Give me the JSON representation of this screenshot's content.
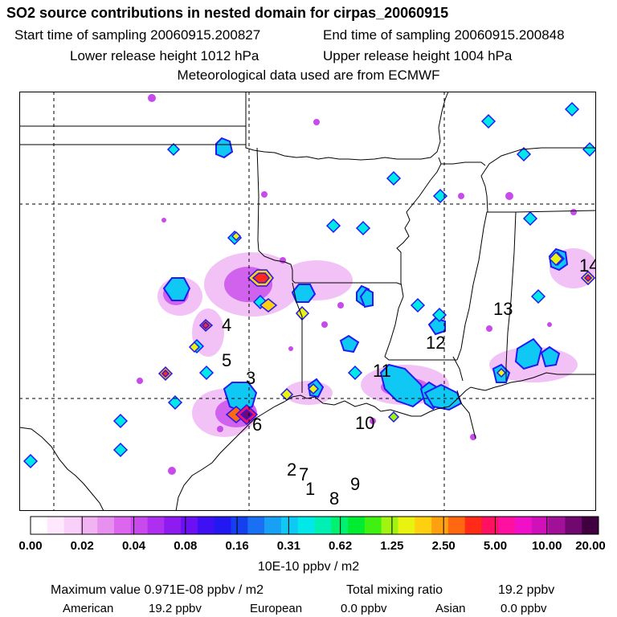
{
  "header": {
    "title": "SO2 source contributions in nested domain for cirpas_20060915",
    "start_label": "Start time of sampling 20060915.200827",
    "end_label": "End time of sampling 20060915.200848",
    "lower_label": "Lower release height 1012 hPa",
    "upper_label": "Upper release height 1004 hPa",
    "met_label": "Meteorological data used are from ECMWF"
  },
  "map": {
    "site_labels": [
      {
        "id": "4",
        "text": "4"
      },
      {
        "id": "5",
        "text": "5"
      },
      {
        "id": "3",
        "text": "3"
      },
      {
        "id": "6",
        "text": "6"
      },
      {
        "id": "11",
        "text": "11"
      },
      {
        "id": "10",
        "text": "10"
      },
      {
        "id": "12",
        "text": "12"
      },
      {
        "id": "13",
        "text": "13"
      },
      {
        "id": "14",
        "text": "14"
      },
      {
        "id": "2",
        "text": "2"
      },
      {
        "id": "7",
        "text": "7"
      },
      {
        "id": "1",
        "text": "1"
      },
      {
        "id": "8",
        "text": "8"
      },
      {
        "id": "9",
        "text": "9"
      }
    ]
  },
  "colorbar": {
    "colors": [
      "#ffffff",
      "#fde8fd",
      "#f8d0f8",
      "#f1b3f1",
      "#e890f0",
      "#dc66ee",
      "#c84aec",
      "#ae2ff0",
      "#8e1cf0",
      "#6a10f2",
      "#4010f4",
      "#2218f2",
      "#1440ee",
      "#1a70f2",
      "#18a0f4",
      "#10c8f4",
      "#00e8e8",
      "#00f0b4",
      "#00f070",
      "#00ec30",
      "#40f010",
      "#a0f410",
      "#e8f410",
      "#ffd010",
      "#ffa010",
      "#ff6810",
      "#ff2a18",
      "#ff1060",
      "#ff10a0",
      "#f010c8",
      "#d010b8",
      "#a01098",
      "#700870",
      "#400040"
    ],
    "tick_labels": [
      "0.00",
      "0.02",
      "0.04",
      "0.08",
      "0.16",
      "0.31",
      "0.62",
      "1.25",
      "2.50",
      "5.00",
      "10.00",
      "20.00"
    ],
    "unit_label": "10E-10 ppbv / m2"
  },
  "footer": {
    "max_label": "Maximum value  0.971E-08 ppbv / m2",
    "total_label": "Total mixing ratio",
    "total_value": "19.2 ppbv",
    "american_label": "American",
    "american_value": "19.2 ppbv",
    "european_label": "European",
    "european_value": "0.0 ppbv",
    "asian_label": "Asian",
    "asian_value": "0.0 ppbv"
  }
}
